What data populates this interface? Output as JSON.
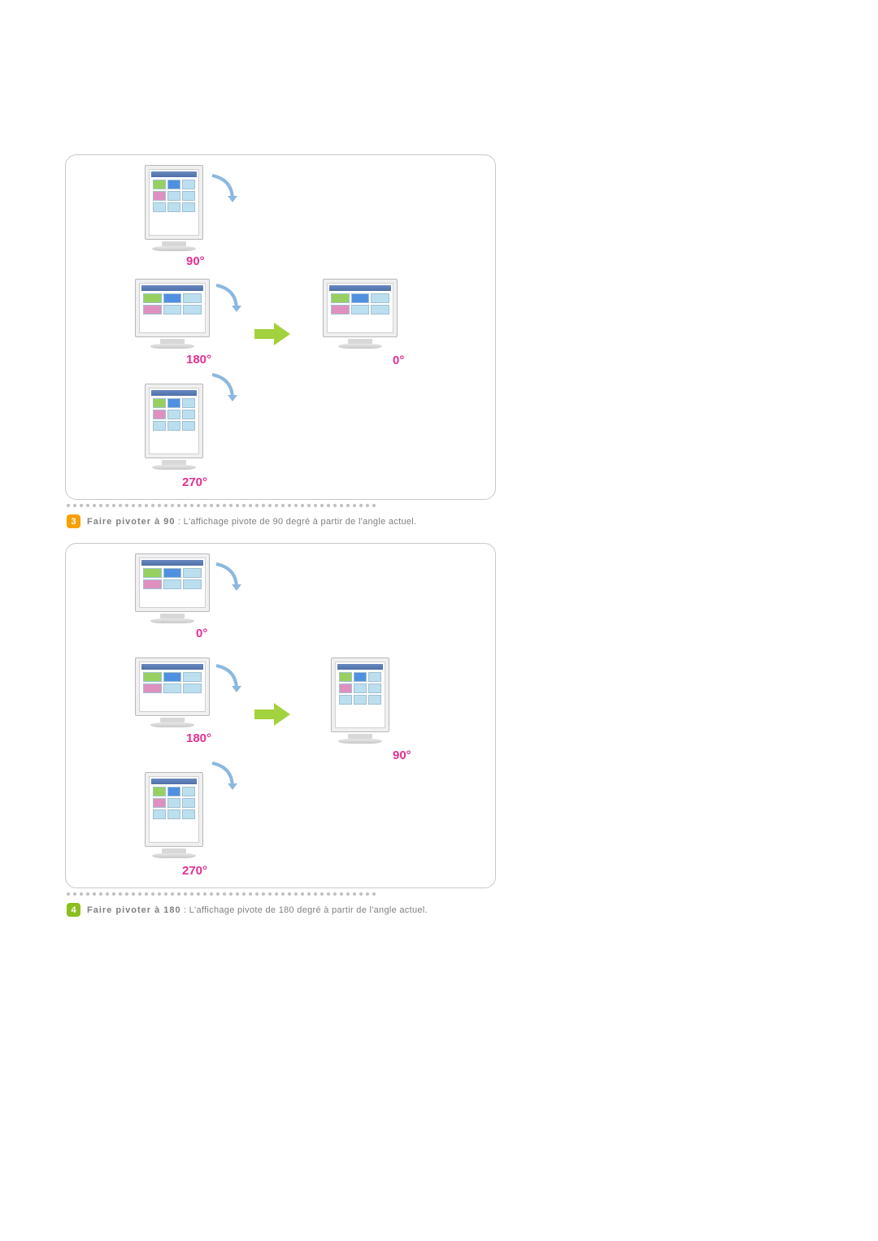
{
  "colors": {
    "badge3": "#f7a000",
    "badge4": "#8abf1f",
    "accent_arrow": "#a2d23d",
    "curve_arrow": "#8bb8e0",
    "degree_label": "#e43090",
    "divider_dot": "#c0c0c0",
    "text": "#808080",
    "border": "#c8c8c8"
  },
  "diagram1": {
    "monitors": [
      {
        "angle": "90°",
        "orientation": "portrait",
        "pos": "top"
      },
      {
        "angle": "180°",
        "orientation": "landscape",
        "pos": "middle-left"
      },
      {
        "angle": "0°",
        "orientation": "landscape",
        "pos": "middle-right"
      },
      {
        "angle": "270°",
        "orientation": "portrait",
        "pos": "bottom"
      }
    ]
  },
  "step3": {
    "badge": "3",
    "bold": "Faire pivoter à 90",
    "rest": " : L'affichage pivote de 90 degré à partir de l'angle actuel."
  },
  "diagram2": {
    "monitors": [
      {
        "angle": "0°",
        "orientation": "landscape",
        "pos": "top"
      },
      {
        "angle": "180°",
        "orientation": "landscape",
        "pos": "middle-left"
      },
      {
        "angle": "90°",
        "orientation": "portrait",
        "pos": "middle-right"
      },
      {
        "angle": "270°",
        "orientation": "portrait",
        "pos": "bottom"
      }
    ]
  },
  "step4": {
    "badge": "4",
    "bold": "Faire pivoter à 180",
    "rest": " : L'affichage pivote de 180 degré à partir de l'angle actuel."
  }
}
